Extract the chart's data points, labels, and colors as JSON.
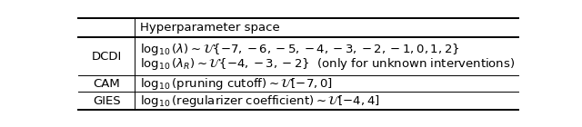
{
  "figsize": [
    6.4,
    1.4
  ],
  "dpi": 100,
  "bg_color": "#ffffff",
  "border_color": "#000000",
  "header_text": "Hyperparameter space",
  "rows": [
    {
      "label": "DCDI",
      "lines": [
        "$\\log_{10}(\\lambda) \\sim \\mathcal{U}\\{-7,-6,-5,-4,-3,-2,-1,0,1,2\\}$",
        "$\\log_{10}(\\lambda_R) \\sim \\mathcal{U}\\{-4,-3,-2\\}$  (only for unknown interventions)"
      ]
    },
    {
      "label": "CAM",
      "lines": [
        "$\\log_{10}(\\mathrm{pruning\\ cutoff}) \\sim \\mathcal{U}[-7,0]$"
      ]
    },
    {
      "label": "GIES",
      "lines": [
        "$\\log_{10}(\\mathrm{regularizer\\ coefficient}) \\sim \\mathcal{U}[-4,4]$"
      ]
    }
  ],
  "lw_thick": 1.4,
  "lw_thin": 0.7,
  "label_fontsize": 9.5,
  "content_fontsize": 9.5,
  "header_fontsize": 9.5
}
